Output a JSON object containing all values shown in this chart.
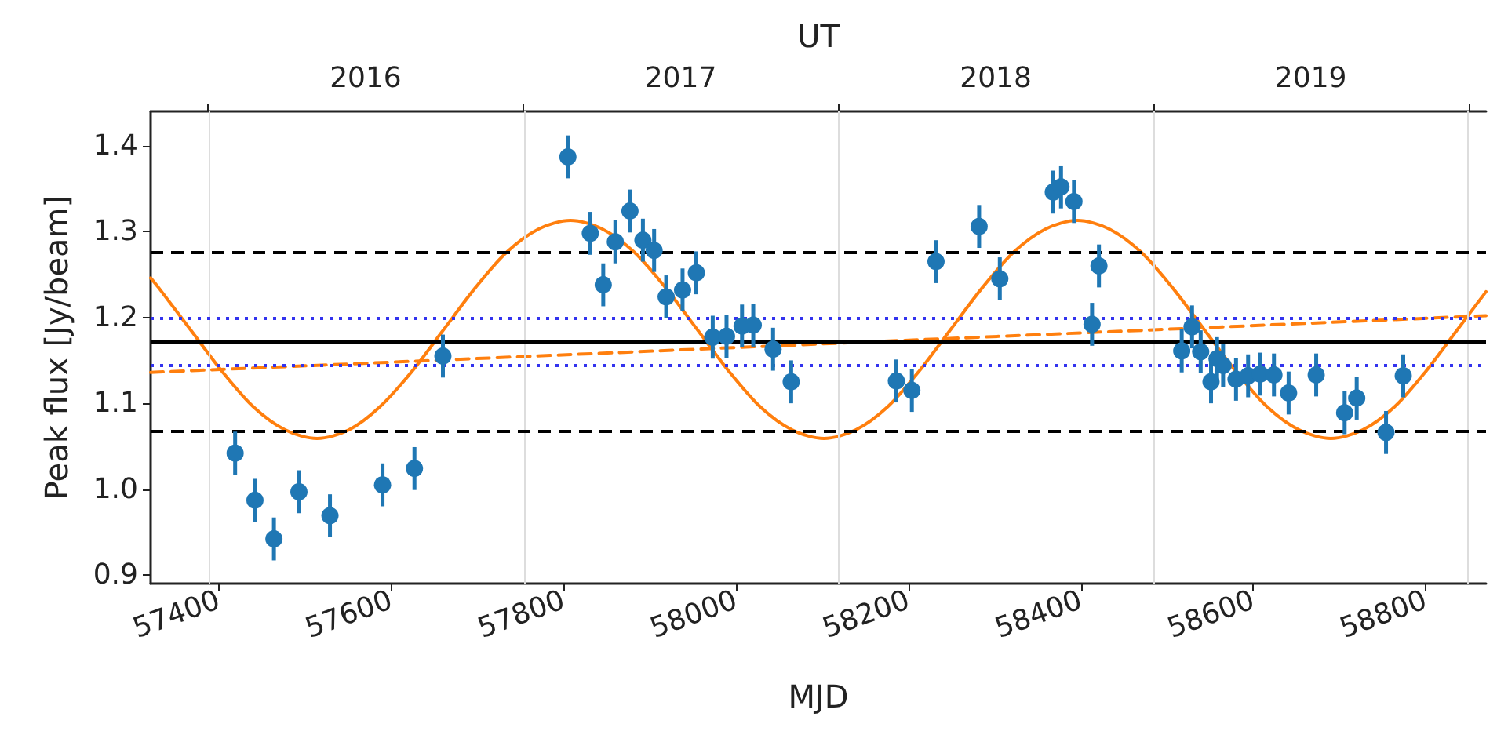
{
  "chart_data": {
    "type": "scatter",
    "xlabel": "MJD",
    "ylabel": "Peak flux [Jy/beam]",
    "x2label": "UT",
    "xlim": [
      57321,
      58870
    ],
    "xticks": [
      57400,
      57600,
      57800,
      58000,
      58200,
      58400,
      58600,
      58800
    ],
    "x2lim": [
      "2015-10-27",
      "2020-01-21"
    ],
    "x2ticks": [
      {
        "value": "2016-01-01",
        "label": null
      },
      {
        "value": "2016-07-02",
        "label": "2016"
      },
      {
        "value": "2017-01-01",
        "label": null
      },
      {
        "value": "2017-07-02",
        "label": "2017"
      },
      {
        "value": "2018-01-01",
        "label": null
      },
      {
        "value": "2018-07-02",
        "label": "2018"
      },
      {
        "value": "2019-01-01",
        "label": null
      },
      {
        "value": "2019-07-02",
        "label": "2019"
      },
      {
        "value": "2020-01-01",
        "label": null
      }
    ],
    "ylim": [
      0.89,
      1.44
    ],
    "yticks": [
      {
        "value": 0.9,
        "label": "0.9"
      },
      {
        "value": 1.0,
        "label": "1.0"
      },
      {
        "value": 1.1,
        "label": "1.1"
      },
      {
        "value": 1.2,
        "label": "1.2"
      },
      {
        "value": 1.3,
        "label": "1.3"
      },
      {
        "value": 1.4,
        "label": "1.4"
      }
    ],
    "grid": false,
    "marker": "circle",
    "ref_lines": [
      {
        "axis": "x",
        "value": 57388,
        "label": null,
        "color": "#dddddd",
        "line_style": "solid"
      },
      {
        "axis": "x",
        "value": 57754,
        "label": null,
        "color": "#dddddd",
        "line_style": "solid"
      },
      {
        "axis": "x",
        "value": 58119,
        "label": null,
        "color": "#dddddd",
        "line_style": "solid"
      },
      {
        "axis": "x",
        "value": 58484,
        "label": null,
        "color": "#dddddd",
        "line_style": "solid"
      },
      {
        "axis": "x",
        "value": 58849,
        "label": null,
        "color": "#dddddd",
        "line_style": "solid"
      },
      {
        "axis": "y",
        "value": 1.276,
        "label": null,
        "color": "#000000",
        "line_style": "dashed"
      },
      {
        "axis": "y",
        "value": 1.067,
        "label": null,
        "color": "#000000",
        "line_style": "dashed"
      },
      {
        "axis": "y",
        "value": 1.172,
        "label": null,
        "color": "#000000",
        "line_style": "solid"
      },
      {
        "axis": "y",
        "value": 1.2,
        "label": null,
        "color": "#3333ee",
        "line_style": "dotted"
      },
      {
        "axis": "y",
        "value": 1.145,
        "label": null,
        "color": "#3333ee",
        "line_style": "dotted"
      }
    ],
    "series": [
      {
        "type": "line",
        "color": "#ff7f0e",
        "line_style": "solid",
        "marker": "none",
        "x": [
          57321,
          57330,
          57367,
          57404,
          57440,
          57477,
          57514,
          57551,
          57587,
          57624,
          57661,
          57698,
          57734,
          57771,
          57808,
          57845,
          57882,
          57918,
          57955,
          57992,
          58028,
          58065,
          58102,
          58139,
          58176,
          58212,
          58249,
          58286,
          58322,
          58359,
          58396,
          58433,
          58470,
          58506,
          58543,
          58580,
          58616,
          58653,
          58690,
          58727,
          58764,
          58800,
          58837,
          58870
        ],
        "values": [
          1.246,
          1.235,
          1.186,
          1.137,
          1.096,
          1.069,
          1.059,
          1.069,
          1.096,
          1.137,
          1.186,
          1.235,
          1.276,
          1.303,
          1.313,
          1.303,
          1.276,
          1.235,
          1.186,
          1.137,
          1.096,
          1.069,
          1.059,
          1.069,
          1.096,
          1.137,
          1.186,
          1.235,
          1.276,
          1.303,
          1.313,
          1.303,
          1.276,
          1.235,
          1.186,
          1.137,
          1.096,
          1.069,
          1.059,
          1.069,
          1.096,
          1.137,
          1.186,
          1.23
        ]
      },
      {
        "type": "line",
        "color": "#ff7f0e",
        "line_style": "dashed",
        "marker": "none",
        "x": [
          57321,
          58870
        ],
        "values": [
          1.136,
          1.202
        ]
      },
      {
        "color": "#1f77b4",
        "x": [
          57419,
          57442,
          57464,
          57493,
          57529,
          57590,
          57627,
          57660,
          57805,
          57831,
          57846,
          57860,
          57877,
          57892,
          57905,
          57919,
          57938,
          57954,
          57973,
          57989,
          58007,
          58020,
          58043,
          58064,
          58186,
          58204,
          58232,
          58282,
          58306,
          58368,
          58377,
          58392,
          58421,
          58413,
          58517,
          58529,
          58539,
          58551,
          58558,
          58565,
          58580,
          58594,
          58608,
          58624,
          58641,
          58673,
          58706,
          58720,
          58754,
          58774
        ],
        "values": [
          1.042,
          0.987,
          0.942,
          0.997,
          0.969,
          1.005,
          1.024,
          1.155,
          1.387,
          1.298,
          1.238,
          1.288,
          1.324,
          1.29,
          1.278,
          1.224,
          1.232,
          1.252,
          1.177,
          1.178,
          1.19,
          1.191,
          1.163,
          1.125,
          1.126,
          1.115,
          1.265,
          1.306,
          1.245,
          1.346,
          1.352,
          1.335,
          1.26,
          1.192,
          1.161,
          1.189,
          1.16,
          1.125,
          1.152,
          1.144,
          1.128,
          1.132,
          1.134,
          1.133,
          1.112,
          1.133,
          1.089,
          1.106,
          1.066,
          1.132
        ],
        "errors": [
          0.025,
          0.025,
          0.025,
          0.025,
          0.025,
          0.025,
          0.025,
          0.025,
          0.025,
          0.025,
          0.025,
          0.025,
          0.025,
          0.025,
          0.025,
          0.025,
          0.025,
          0.025,
          0.025,
          0.025,
          0.025,
          0.025,
          0.025,
          0.025,
          0.025,
          0.025,
          0.025,
          0.025,
          0.025,
          0.025,
          0.025,
          0.025,
          0.025,
          0.025,
          0.025,
          0.025,
          0.025,
          0.025,
          0.025,
          0.025,
          0.025,
          0.025,
          0.025,
          0.025,
          0.025,
          0.025,
          0.025,
          0.025,
          0.025,
          0.025
        ]
      }
    ]
  }
}
